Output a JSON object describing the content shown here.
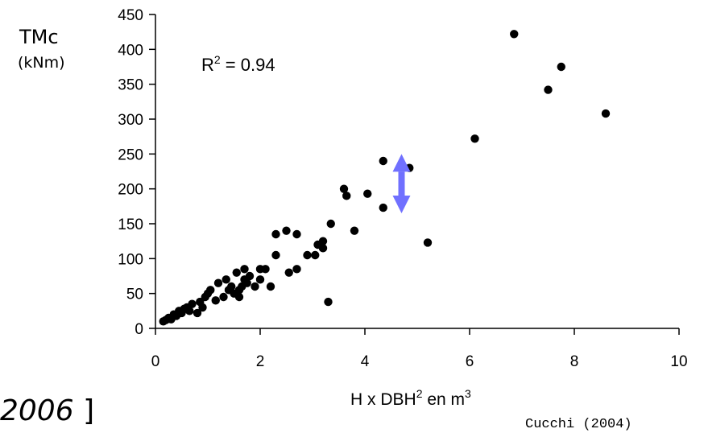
{
  "chart_data": {
    "type": "scatter",
    "ylabel": "TMc",
    "ylabel_unit": "(kNm)",
    "xlabel_pre": "H x DBH",
    "xlabel_sup1": "2",
    "xlabel_mid": " en m",
    "xlabel_sup2": "3",
    "annotation_pre": "R",
    "annotation_sup": "2",
    "annotation_post": " = 0.94",
    "xlim": [
      0,
      10
    ],
    "ylim": [
      0,
      450
    ],
    "xticks": [
      0,
      2,
      4,
      6,
      8,
      10
    ],
    "yticks": [
      0,
      50,
      100,
      150,
      200,
      250,
      300,
      350,
      400,
      450
    ],
    "grid": false,
    "marker_color": "#000000",
    "arrow_color": "#7070ff",
    "arrow_x": 4.7,
    "arrow_range": [
      165,
      250
    ],
    "points": [
      [
        0.15,
        10
      ],
      [
        0.2,
        12
      ],
      [
        0.25,
        15
      ],
      [
        0.3,
        13
      ],
      [
        0.35,
        20
      ],
      [
        0.4,
        18
      ],
      [
        0.45,
        25
      ],
      [
        0.5,
        22
      ],
      [
        0.55,
        28
      ],
      [
        0.6,
        30
      ],
      [
        0.65,
        25
      ],
      [
        0.7,
        35
      ],
      [
        0.8,
        22
      ],
      [
        0.85,
        38
      ],
      [
        0.9,
        30
      ],
      [
        0.95,
        45
      ],
      [
        1.0,
        50
      ],
      [
        1.05,
        55
      ],
      [
        1.15,
        40
      ],
      [
        1.2,
        65
      ],
      [
        1.3,
        45
      ],
      [
        1.35,
        70
      ],
      [
        1.4,
        55
      ],
      [
        1.45,
        60
      ],
      [
        1.5,
        50
      ],
      [
        1.55,
        80
      ],
      [
        1.6,
        55
      ],
      [
        1.6,
        45
      ],
      [
        1.65,
        60
      ],
      [
        1.7,
        85
      ],
      [
        1.7,
        70
      ],
      [
        1.75,
        65
      ],
      [
        1.8,
        75
      ],
      [
        1.9,
        60
      ],
      [
        2.0,
        70
      ],
      [
        2.0,
        85
      ],
      [
        2.1,
        85
      ],
      [
        2.2,
        60
      ],
      [
        2.3,
        105
      ],
      [
        2.3,
        135
      ],
      [
        2.5,
        140
      ],
      [
        2.55,
        80
      ],
      [
        2.7,
        135
      ],
      [
        2.7,
        85
      ],
      [
        2.9,
        105
      ],
      [
        3.05,
        105
      ],
      [
        3.1,
        120
      ],
      [
        3.2,
        125
      ],
      [
        3.2,
        115
      ],
      [
        3.3,
        38
      ],
      [
        3.35,
        150
      ],
      [
        3.6,
        200
      ],
      [
        3.65,
        190
      ],
      [
        3.8,
        140
      ],
      [
        4.05,
        193
      ],
      [
        4.35,
        173
      ],
      [
        4.35,
        240
      ],
      [
        4.85,
        230
      ],
      [
        5.2,
        123
      ],
      [
        6.1,
        272
      ],
      [
        6.85,
        422
      ],
      [
        7.5,
        342
      ],
      [
        7.75,
        375
      ],
      [
        8.6,
        308
      ]
    ]
  },
  "citation": "2006]",
  "credit": "Cucchi (2004)"
}
